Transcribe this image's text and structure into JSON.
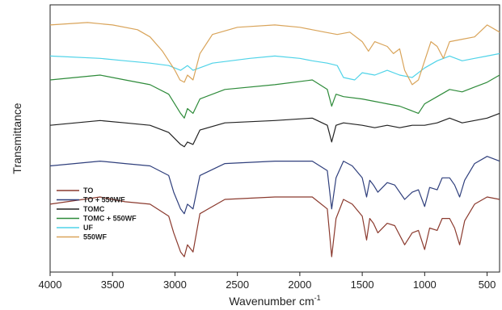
{
  "chart_data": {
    "type": "line",
    "xlabel": "Wavenumber cm",
    "xlabel_superscript": "-1",
    "ylabel": "Transmittance",
    "xlim": [
      4000,
      400
    ],
    "x_ticks": [
      4000,
      3500,
      3000,
      2500,
      2000,
      1500,
      1000,
      500
    ],
    "x_reversed": true,
    "y_ticks_shown": false,
    "grid": false,
    "legend_position": "bottom-left",
    "series": [
      {
        "name": "TO",
        "color": "#8b3a2e",
        "x": [
          4000,
          3600,
          3400,
          3200,
          3050,
          3010,
          2955,
          2925,
          2900,
          2855,
          2800,
          2600,
          2200,
          1900,
          1780,
          1745,
          1710,
          1650,
          1580,
          1500,
          1465,
          1440,
          1410,
          1375,
          1300,
          1240,
          1160,
          1100,
          1050,
          1000,
          960,
          900,
          860,
          800,
          760,
          720,
          680,
          600,
          500,
          400
        ],
        "y": [
          0.22,
          0.25,
          0.23,
          0.22,
          0.17,
          0.1,
          0.02,
          0.0,
          0.05,
          0.02,
          0.18,
          0.24,
          0.25,
          0.25,
          0.2,
          0.0,
          0.16,
          0.24,
          0.22,
          0.17,
          0.07,
          0.16,
          0.14,
          0.1,
          0.14,
          0.13,
          0.05,
          0.1,
          0.11,
          0.03,
          0.12,
          0.11,
          0.16,
          0.16,
          0.12,
          0.05,
          0.15,
          0.22,
          0.25,
          0.24
        ]
      },
      {
        "name": "TO + 550WF",
        "color": "#2f3f7c",
        "x": [
          4000,
          3600,
          3400,
          3200,
          3050,
          3010,
          2955,
          2925,
          2900,
          2855,
          2800,
          2600,
          2200,
          1900,
          1780,
          1745,
          1710,
          1650,
          1580,
          1500,
          1465,
          1440,
          1410,
          1375,
          1300,
          1240,
          1160,
          1100,
          1050,
          1000,
          960,
          900,
          860,
          800,
          760,
          720,
          680,
          600,
          500,
          400
        ],
        "y": [
          0.38,
          0.4,
          0.39,
          0.38,
          0.34,
          0.27,
          0.2,
          0.18,
          0.22,
          0.2,
          0.34,
          0.39,
          0.4,
          0.4,
          0.36,
          0.2,
          0.33,
          0.4,
          0.38,
          0.33,
          0.25,
          0.32,
          0.3,
          0.27,
          0.31,
          0.3,
          0.24,
          0.27,
          0.28,
          0.21,
          0.29,
          0.28,
          0.33,
          0.33,
          0.3,
          0.25,
          0.32,
          0.39,
          0.42,
          0.4
        ]
      },
      {
        "name": "TOMC",
        "color": "#222222",
        "x": [
          4000,
          3600,
          3400,
          3200,
          3050,
          2955,
          2925,
          2900,
          2855,
          2800,
          2600,
          2200,
          1900,
          1780,
          1745,
          1710,
          1650,
          1500,
          1400,
          1300,
          1200,
          1100,
          1000,
          900,
          800,
          700,
          600,
          500,
          400
        ],
        "y": [
          0.55,
          0.57,
          0.56,
          0.55,
          0.52,
          0.47,
          0.46,
          0.48,
          0.47,
          0.53,
          0.56,
          0.57,
          0.58,
          0.55,
          0.48,
          0.55,
          0.56,
          0.55,
          0.54,
          0.55,
          0.54,
          0.55,
          0.55,
          0.56,
          0.58,
          0.56,
          0.57,
          0.58,
          0.6
        ]
      },
      {
        "name": "TOMC + 550WF",
        "color": "#2e8b3a",
        "x": [
          4000,
          3600,
          3400,
          3200,
          3050,
          2955,
          2925,
          2900,
          2855,
          2800,
          2600,
          2200,
          1900,
          1780,
          1745,
          1710,
          1650,
          1500,
          1400,
          1300,
          1200,
          1100,
          1050,
          1000,
          900,
          800,
          700,
          600,
          500,
          400
        ],
        "y": [
          0.74,
          0.76,
          0.74,
          0.72,
          0.68,
          0.6,
          0.58,
          0.62,
          0.6,
          0.66,
          0.7,
          0.72,
          0.74,
          0.7,
          0.63,
          0.68,
          0.67,
          0.66,
          0.65,
          0.64,
          0.63,
          0.61,
          0.6,
          0.64,
          0.67,
          0.7,
          0.69,
          0.71,
          0.73,
          0.76
        ]
      },
      {
        "name": "UF",
        "color": "#4fd3e8",
        "x": [
          4000,
          3600,
          3400,
          3200,
          3050,
          2955,
          2900,
          2855,
          2700,
          2400,
          2200,
          2000,
          1900,
          1780,
          1700,
          1650,
          1560,
          1500,
          1400,
          1300,
          1200,
          1100,
          1000,
          900,
          800,
          700,
          600,
          500,
          400
        ],
        "y": [
          0.84,
          0.83,
          0.82,
          0.81,
          0.8,
          0.78,
          0.8,
          0.78,
          0.81,
          0.83,
          0.84,
          0.83,
          0.82,
          0.81,
          0.8,
          0.75,
          0.74,
          0.77,
          0.76,
          0.78,
          0.76,
          0.75,
          0.79,
          0.82,
          0.84,
          0.82,
          0.83,
          0.84,
          0.85
        ]
      },
      {
        "name": "550WF",
        "color": "#d9a45a",
        "x": [
          4000,
          3700,
          3500,
          3300,
          3200,
          3100,
          3000,
          2960,
          2925,
          2900,
          2855,
          2800,
          2700,
          2500,
          2200,
          2000,
          1900,
          1800,
          1700,
          1600,
          1500,
          1450,
          1400,
          1300,
          1250,
          1200,
          1160,
          1100,
          1050,
          1000,
          950,
          900,
          850,
          800,
          700,
          600,
          500,
          400
        ],
        "y": [
          0.97,
          0.98,
          0.97,
          0.95,
          0.92,
          0.86,
          0.78,
          0.74,
          0.73,
          0.76,
          0.74,
          0.85,
          0.93,
          0.96,
          0.97,
          0.96,
          0.95,
          0.94,
          0.93,
          0.94,
          0.9,
          0.86,
          0.9,
          0.88,
          0.85,
          0.87,
          0.78,
          0.72,
          0.74,
          0.82,
          0.9,
          0.88,
          0.83,
          0.9,
          0.91,
          0.92,
          0.97,
          0.94
        ]
      }
    ]
  }
}
